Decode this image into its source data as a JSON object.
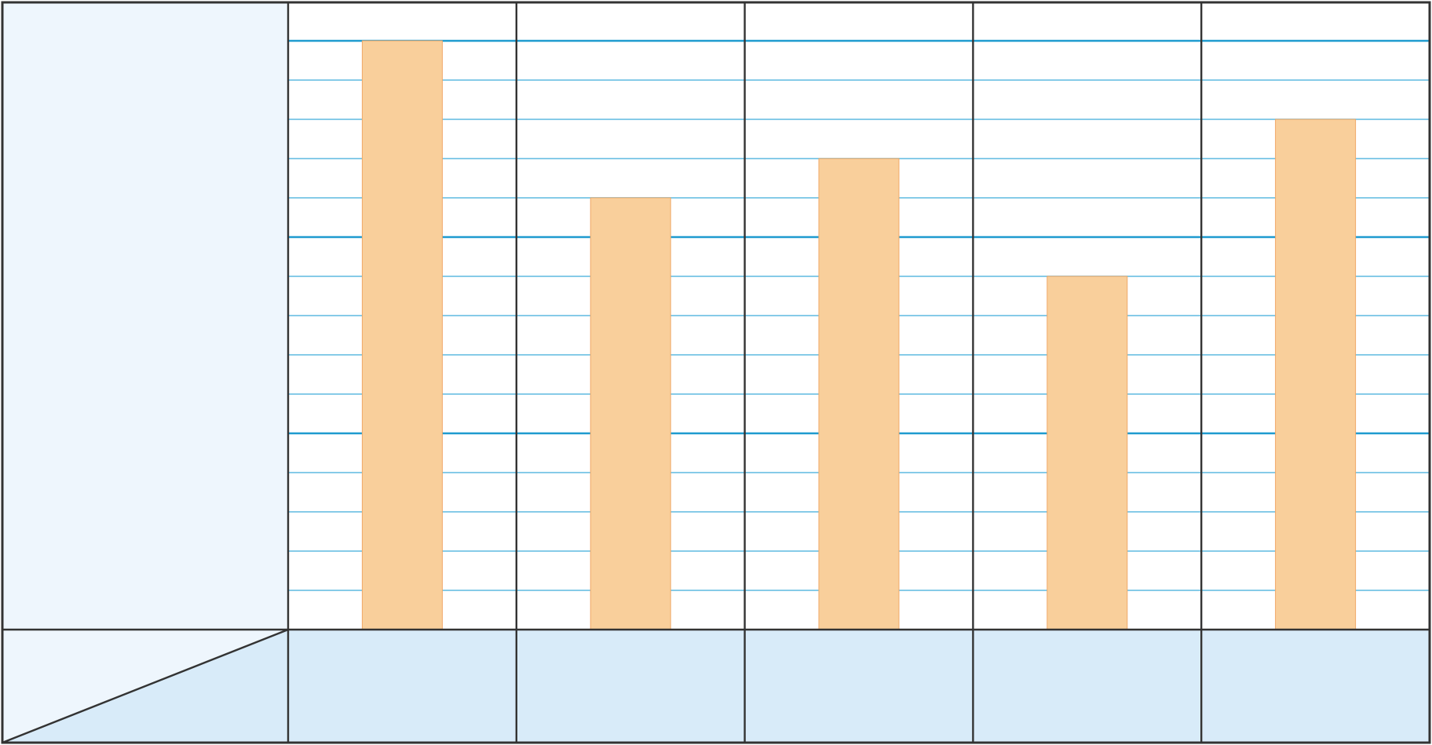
{
  "chart_data": {
    "type": "bar",
    "title": "",
    "xlabel": "",
    "ylabel": "",
    "categories": [
      "",
      "",
      "",
      "",
      ""
    ],
    "values": [
      15,
      11,
      12,
      9,
      13
    ],
    "ylim": [
      0,
      16
    ],
    "grid": true,
    "colors": {
      "bar_fill": "#f9cf9b",
      "bar_stroke": "#f0a868",
      "grid_minor": "#86cbe8",
      "grid_major": "#1f9bcf",
      "border": "#333333",
      "header_panel": "#eef6fd",
      "category_band": "#d8ebf9"
    }
  }
}
